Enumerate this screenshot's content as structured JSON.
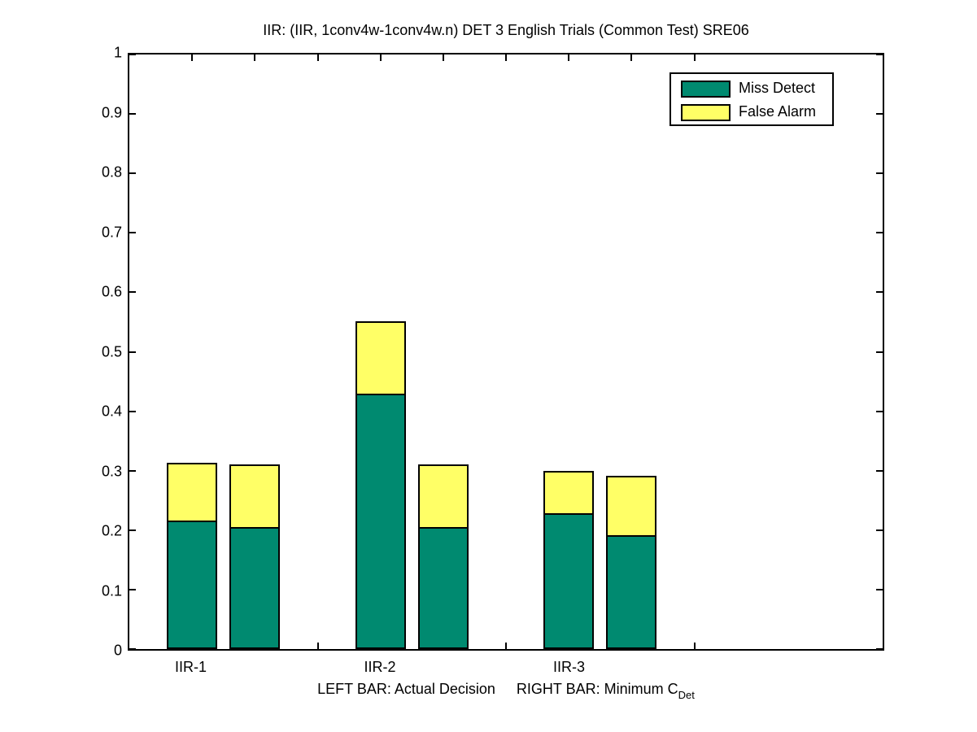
{
  "figure": {
    "background": "#ffffff",
    "axis_color": "#000000"
  },
  "chart_data": {
    "type": "bar",
    "stacked": true,
    "title": "IIR: (IIR, 1conv4w-1conv4w.n) DET 3 English Trials (Common Test) SRE06",
    "categories": [
      "IIR-1",
      "IIR-2",
      "IIR-3"
    ],
    "series": [
      {
        "name": "Miss Detect",
        "color": "#008a70",
        "values_left_bar": [
          0.216,
          0.43,
          0.229
        ],
        "values_right_bar": [
          0.205,
          0.205,
          0.192
        ]
      },
      {
        "name": "False Alarm",
        "color": "#ffff66",
        "values_left_bar": [
          0.097,
          0.122,
          0.071
        ],
        "values_right_bar": [
          0.106,
          0.106,
          0.099
        ]
      }
    ],
    "bar_semantics": {
      "left_bar": "Actual Decision",
      "right_bar": "Minimum C_Det"
    },
    "xlabel": {
      "left_part": "LEFT BAR: Actual Decision",
      "right_part": "RIGHT BAR: Minimum C",
      "right_subscript": "Det"
    },
    "ylabel": "",
    "ylim": [
      0,
      1
    ],
    "y_ticks": [
      {
        "value": 0.0,
        "label": "0"
      },
      {
        "value": 0.1,
        "label": "0.1"
      },
      {
        "value": 0.2,
        "label": "0.2"
      },
      {
        "value": 0.3,
        "label": "0.3"
      },
      {
        "value": 0.4,
        "label": "0.4"
      },
      {
        "value": 0.5,
        "label": "0.5"
      },
      {
        "value": 0.6,
        "label": "0.6"
      },
      {
        "value": 0.7,
        "label": "0.7"
      },
      {
        "value": 0.8,
        "label": "0.8"
      },
      {
        "value": 0.9,
        "label": "0.9"
      },
      {
        "value": 1.0,
        "label": "1"
      }
    ],
    "edge_color": "#000000",
    "grid": false,
    "legend_position": "top-right"
  }
}
